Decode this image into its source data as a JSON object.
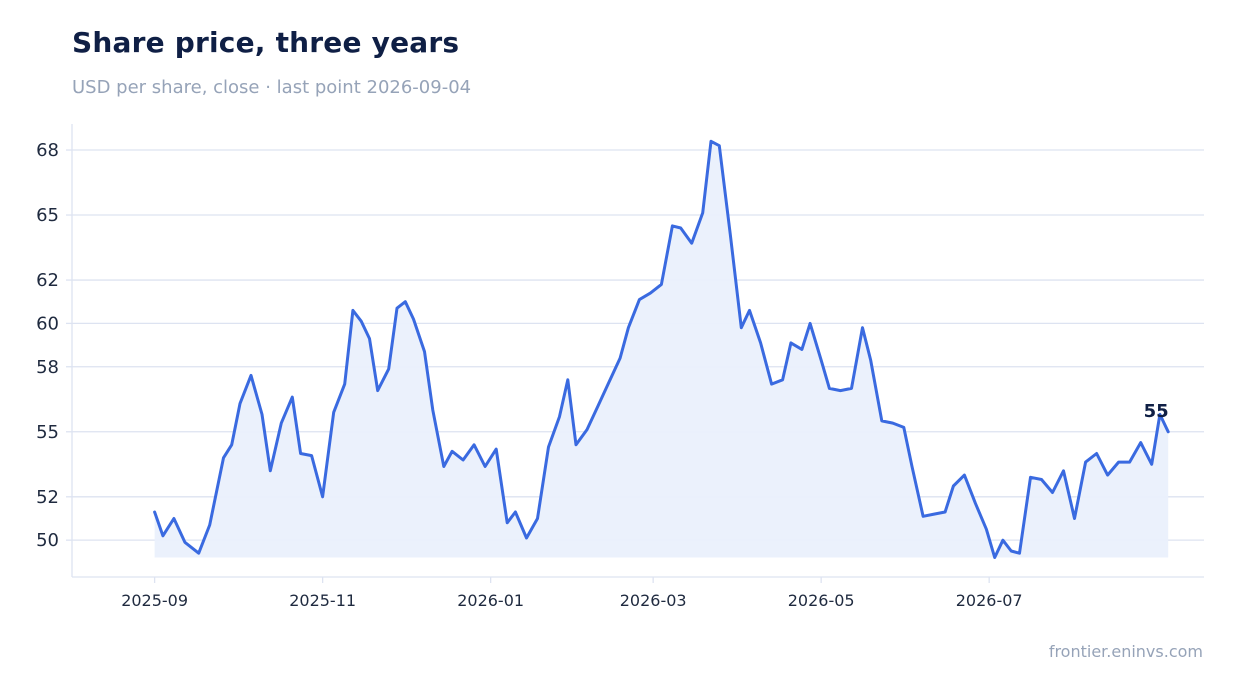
{
  "header": {
    "title": "Share price, three years",
    "subtitle": "USD per share, close · last point 2026-09-04"
  },
  "footer": {
    "source": "frontier.eninvs.com"
  },
  "colors": {
    "line": "#3a6ae0",
    "area": "#eaf0fc",
    "grid": "#dde3f1",
    "axis": "#dde3f1",
    "title": "#0f1f45",
    "muted": "#96a3b8"
  },
  "chart_data": {
    "type": "area",
    "xlabel": "",
    "ylabel": "",
    "xlim": [
      "2025-08-02",
      "2026-09-17"
    ],
    "ylim": [
      48.3,
      69.2
    ],
    "y_ticks": [
      50,
      52,
      55,
      58,
      60,
      62,
      65,
      68
    ],
    "x_ticks": [
      "2025-09",
      "2025-11",
      "2026-01",
      "2026-03",
      "2026-05",
      "2026-07"
    ],
    "grid": "horizontal",
    "end_label": "55",
    "series": [
      {
        "points": [
          [
            "2025-09-01",
            51.3
          ],
          [
            "2025-09-04",
            50.2
          ],
          [
            "2025-09-08",
            51.0
          ],
          [
            "2025-09-12",
            49.9
          ],
          [
            "2025-09-17",
            49.4
          ],
          [
            "2025-09-21",
            50.7
          ],
          [
            "2025-09-26",
            53.8
          ],
          [
            "2025-09-29",
            54.4
          ],
          [
            "2025-10-02",
            56.3
          ],
          [
            "2025-10-06",
            57.6
          ],
          [
            "2025-10-10",
            55.8
          ],
          [
            "2025-10-13",
            53.2
          ],
          [
            "2025-10-17",
            55.4
          ],
          [
            "2025-10-21",
            56.6
          ],
          [
            "2025-10-24",
            54.0
          ],
          [
            "2025-10-28",
            53.9
          ],
          [
            "2025-11-01",
            52.0
          ],
          [
            "2025-11-05",
            55.9
          ],
          [
            "2025-11-09",
            57.2
          ],
          [
            "2025-11-12",
            60.6
          ],
          [
            "2025-11-15",
            60.1
          ],
          [
            "2025-11-18",
            59.3
          ],
          [
            "2025-11-21",
            56.9
          ],
          [
            "2025-11-25",
            57.9
          ],
          [
            "2025-11-28",
            60.7
          ],
          [
            "2025-12-01",
            61.0
          ],
          [
            "2025-12-04",
            60.2
          ],
          [
            "2025-12-08",
            58.7
          ],
          [
            "2025-12-11",
            56.0
          ],
          [
            "2025-12-15",
            53.4
          ],
          [
            "2025-12-18",
            54.1
          ],
          [
            "2025-12-22",
            53.7
          ],
          [
            "2025-12-26",
            54.4
          ],
          [
            "2025-12-30",
            53.4
          ],
          [
            "2026-01-03",
            54.2
          ],
          [
            "2026-01-07",
            50.8
          ],
          [
            "2026-01-10",
            51.3
          ],
          [
            "2026-01-14",
            50.1
          ],
          [
            "2026-01-18",
            51.0
          ],
          [
            "2026-01-22",
            54.3
          ],
          [
            "2026-01-26",
            55.7
          ],
          [
            "2026-01-29",
            57.4
          ],
          [
            "2026-02-01",
            54.4
          ],
          [
            "2026-02-05",
            55.1
          ],
          [
            "2026-02-09",
            56.2
          ],
          [
            "2026-02-13",
            57.3
          ],
          [
            "2026-02-17",
            58.4
          ],
          [
            "2026-02-20",
            59.8
          ],
          [
            "2026-02-24",
            61.1
          ],
          [
            "2026-02-28",
            61.4
          ],
          [
            "2026-03-04",
            61.8
          ],
          [
            "2026-03-08",
            64.5
          ],
          [
            "2026-03-11",
            64.4
          ],
          [
            "2026-03-15",
            63.7
          ],
          [
            "2026-03-19",
            65.1
          ],
          [
            "2026-03-22",
            68.4
          ],
          [
            "2026-03-25",
            68.2
          ],
          [
            "2026-03-29",
            64.1
          ],
          [
            "2026-04-02",
            59.8
          ],
          [
            "2026-04-05",
            60.6
          ],
          [
            "2026-04-09",
            59.1
          ],
          [
            "2026-04-13",
            57.2
          ],
          [
            "2026-04-17",
            57.4
          ],
          [
            "2026-04-20",
            59.1
          ],
          [
            "2026-04-24",
            58.8
          ],
          [
            "2026-04-27",
            60.0
          ],
          [
            "2026-05-01",
            58.3
          ],
          [
            "2026-05-04",
            57.0
          ],
          [
            "2026-05-08",
            56.9
          ],
          [
            "2026-05-12",
            57.0
          ],
          [
            "2026-05-16",
            59.8
          ],
          [
            "2026-05-19",
            58.3
          ],
          [
            "2026-05-23",
            55.5
          ],
          [
            "2026-05-27",
            55.4
          ],
          [
            "2026-05-31",
            55.2
          ],
          [
            "2026-06-03",
            53.4
          ],
          [
            "2026-06-07",
            51.1
          ],
          [
            "2026-06-11",
            51.2
          ],
          [
            "2026-06-15",
            51.3
          ],
          [
            "2026-06-18",
            52.5
          ],
          [
            "2026-06-22",
            53.0
          ],
          [
            "2026-06-26",
            51.7
          ],
          [
            "2026-06-30",
            50.5
          ],
          [
            "2026-07-03",
            49.2
          ],
          [
            "2026-07-06",
            50.0
          ],
          [
            "2026-07-09",
            49.5
          ],
          [
            "2026-07-12",
            49.4
          ],
          [
            "2026-07-16",
            52.9
          ],
          [
            "2026-07-20",
            52.8
          ],
          [
            "2026-07-24",
            52.2
          ],
          [
            "2026-07-28",
            53.2
          ],
          [
            "2026-08-01",
            51.0
          ],
          [
            "2026-08-05",
            53.6
          ],
          [
            "2026-08-09",
            54.0
          ],
          [
            "2026-08-13",
            53.0
          ],
          [
            "2026-08-17",
            53.6
          ],
          [
            "2026-08-21",
            53.6
          ],
          [
            "2026-08-25",
            54.5
          ],
          [
            "2026-08-29",
            53.5
          ],
          [
            "2026-09-01",
            55.8
          ],
          [
            "2026-09-04",
            55.0
          ]
        ]
      }
    ]
  }
}
